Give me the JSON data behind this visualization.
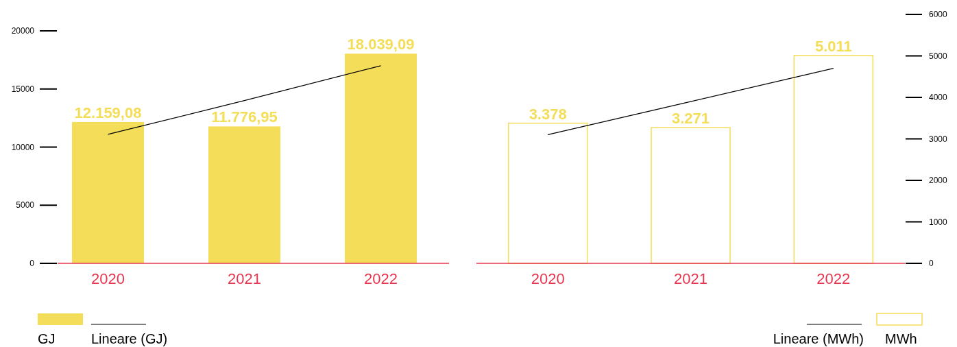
{
  "chart_data": [
    {
      "type": "bar",
      "categories": [
        "2020",
        "2021",
        "2022"
      ],
      "ylim": [
        0,
        20000
      ],
      "yticks": [
        0,
        5000,
        10000,
        15000,
        20000
      ],
      "legend": "bottom left",
      "grid": false,
      "series": [
        {
          "name": "GJ",
          "color": "#f4dd58",
          "values": [
            12159.08,
            11776.95,
            18039.09
          ],
          "value_labels": [
            "12.159,08",
            "11.776,95",
            "18.039,09"
          ]
        },
        {
          "name": "Lineare (GJ)",
          "type": "line",
          "color": "#000000",
          "values": [
            11100,
            14000,
            17000
          ]
        }
      ]
    },
    {
      "type": "bar",
      "categories": [
        "2020",
        "2021",
        "2022"
      ],
      "ylim": [
        0,
        6000
      ],
      "yticks": [
        0,
        1000,
        2000,
        3000,
        4000,
        5000,
        6000
      ],
      "legend": "bottom right",
      "grid": false,
      "series": [
        {
          "name": "MWh",
          "color": "#f4dd58",
          "values": [
            3378,
            3271,
            5011
          ],
          "value_labels": [
            "3.378",
            "3.271",
            "5.011"
          ]
        },
        {
          "name": "Lineare (MWh)",
          "type": "line",
          "color": "#000000",
          "values": [
            3100,
            3900,
            4700
          ]
        }
      ]
    }
  ]
}
